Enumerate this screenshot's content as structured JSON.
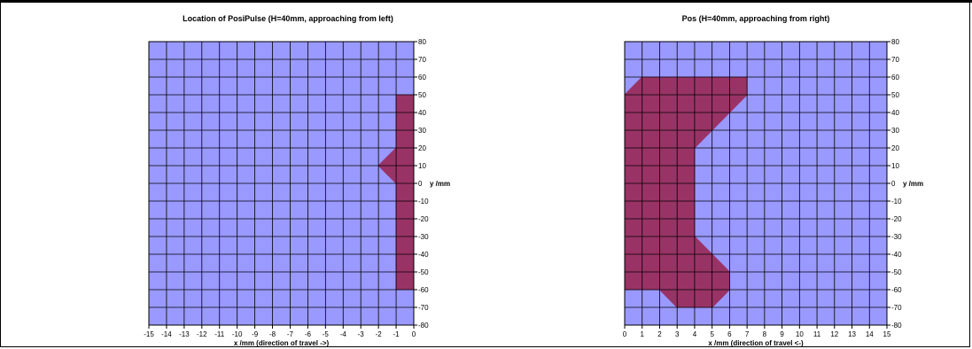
{
  "chart_data": [
    {
      "type": "area",
      "title": "Location of PosiPulse (H=40mm, approaching from left)",
      "xlabel": "x /mm (direction of travel ->)",
      "ylabel": "y /mm",
      "xlim": [
        -15,
        0
      ],
      "ylim": [
        -80,
        80
      ],
      "x_ticks": [
        -15,
        -14,
        -13,
        -12,
        -11,
        -10,
        -9,
        -8,
        -7,
        -6,
        -5,
        -4,
        -3,
        -2,
        -1,
        0
      ],
      "y_ticks": [
        -80,
        -70,
        -60,
        -50,
        -40,
        -30,
        -20,
        -10,
        0,
        10,
        20,
        30,
        40,
        50,
        60,
        70,
        80
      ],
      "grid": true,
      "y_axis_side": "right",
      "series": [
        {
          "polygon": [
            [
              -1,
              50
            ],
            [
              0,
              50
            ],
            [
              0,
              -60
            ],
            [
              -1,
              -60
            ],
            [
              -1,
              0
            ],
            [
              -2,
              10
            ],
            [
              -1,
              20
            ]
          ]
        }
      ]
    },
    {
      "type": "area",
      "title": "Pos (H=40mm, approaching from right)",
      "xlabel": "x /mm (direction of travel <-)",
      "ylabel": "y /mm",
      "xlim": [
        0,
        15
      ],
      "ylim": [
        -80,
        80
      ],
      "x_ticks": [
        0,
        1,
        2,
        3,
        4,
        5,
        6,
        7,
        8,
        9,
        10,
        11,
        12,
        13,
        14,
        15
      ],
      "y_ticks": [
        -80,
        -70,
        -60,
        -50,
        -40,
        -30,
        -20,
        -10,
        0,
        10,
        20,
        30,
        40,
        50,
        60,
        70,
        80
      ],
      "grid": true,
      "y_axis_side": "right",
      "series": [
        {
          "polygon": [
            [
              0,
              50
            ],
            [
              1,
              60
            ],
            [
              7,
              60
            ],
            [
              7,
              50
            ],
            [
              4,
              20
            ],
            [
              4,
              -30
            ],
            [
              6,
              -50
            ],
            [
              6,
              -60
            ],
            [
              5,
              -70
            ],
            [
              3,
              -70
            ],
            [
              2,
              -60
            ],
            [
              0,
              -60
            ]
          ]
        }
      ]
    }
  ],
  "colors": {
    "plot_bg": "#9999ff",
    "fill": "#993366",
    "grid": "#000000"
  }
}
